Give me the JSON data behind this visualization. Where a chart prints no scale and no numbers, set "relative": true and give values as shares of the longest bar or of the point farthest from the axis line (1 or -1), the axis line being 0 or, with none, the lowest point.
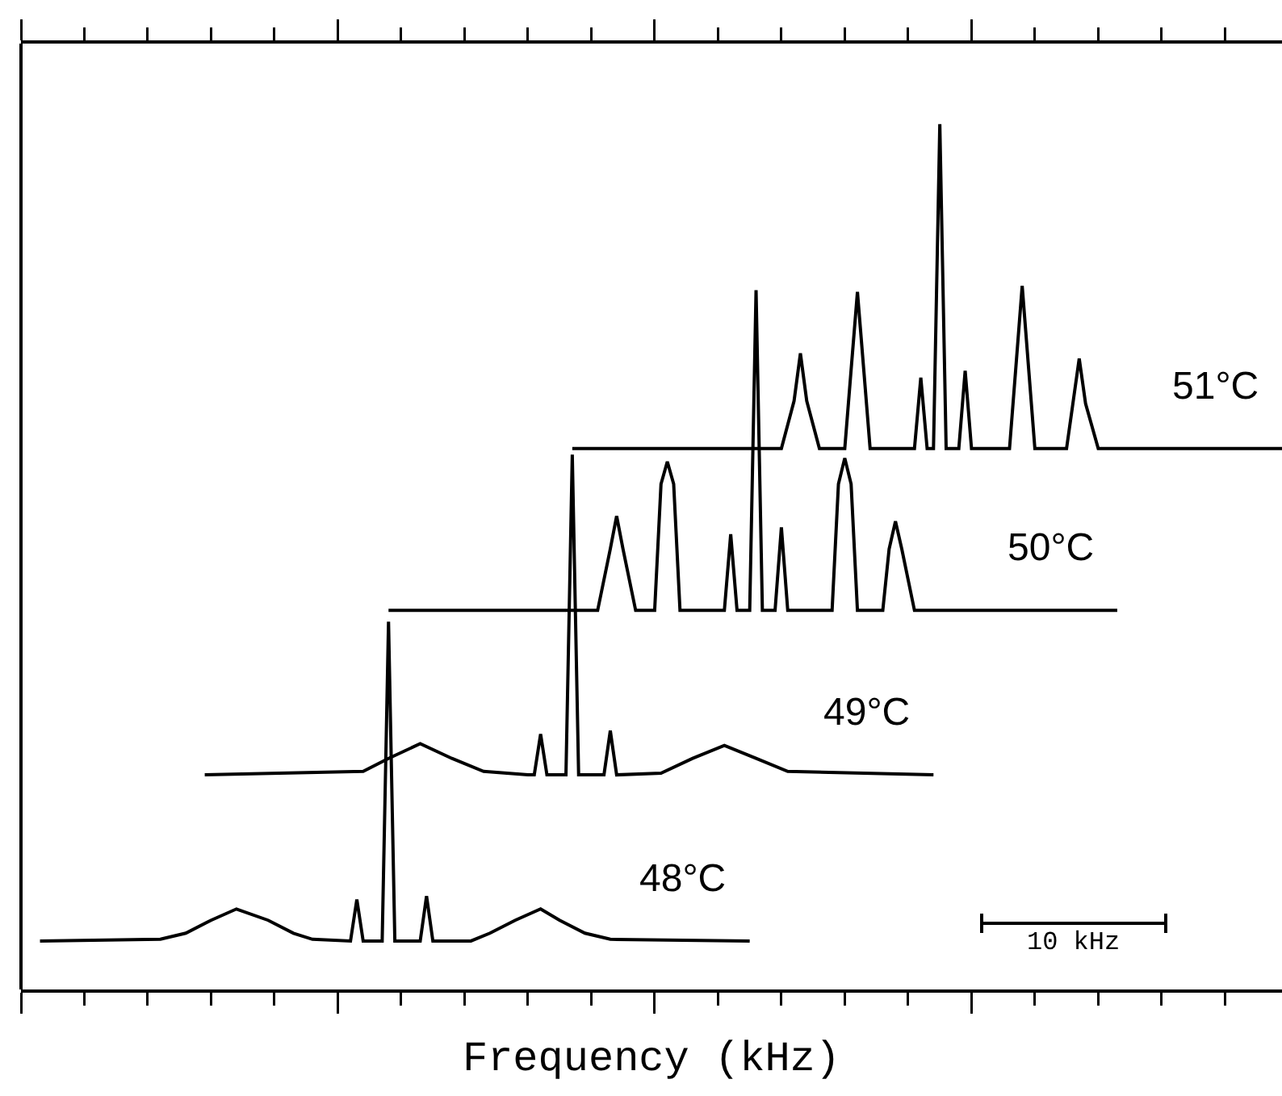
{
  "chart_data": {
    "type": "line",
    "relative": true,
    "xlabel": "Frequency (kHz)",
    "annotations": [
      "10 kHz"
    ],
    "categories": [
      null,
      null,
      null,
      null,
      null,
      null,
      null,
      null,
      null,
      null,
      null,
      null,
      null,
      null,
      null,
      null,
      null,
      null,
      null,
      null,
      null,
      null,
      null,
      null,
      null,
      null,
      null,
      null,
      null,
      null,
      null,
      null,
      null,
      null,
      null,
      null,
      null,
      null,
      null,
      null,
      null,
      null,
      null,
      null,
      null,
      null,
      null,
      null,
      null,
      null,
      null,
      null,
      null,
      null,
      null,
      null,
      null,
      null,
      null,
      null,
      null,
      null,
      null,
      null,
      null,
      null,
      null,
      null,
      null,
      null,
      null,
      null,
      null,
      null,
      null,
      null,
      null,
      null,
      null,
      null,
      null,
      null,
      null,
      null,
      null,
      null,
      null,
      null,
      null,
      null,
      null,
      null,
      null,
      null,
      null,
      null,
      null,
      null,
      null,
      null,
      null,
      null,
      null,
      null,
      null,
      null,
      null,
      null,
      null,
      null,
      null,
      null,
      null,
      null,
      null,
      null,
      null,
      null,
      null,
      null,
      null,
      null,
      null,
      null,
      null,
      null,
      null,
      null,
      null,
      null,
      null,
      null,
      null,
      null,
      null,
      null,
      null,
      null,
      null,
      null,
      null,
      null,
      null,
      null,
      null,
      null,
      null,
      null,
      null,
      null,
      null,
      null,
      null,
      null,
      null,
      null,
      null,
      null,
      null,
      null,
      null,
      null,
      null,
      null,
      null,
      null,
      null,
      null,
      null,
      null,
      null,
      null,
      null,
      null,
      null,
      null,
      null,
      null,
      null,
      null,
      null,
      null,
      null,
      null,
      null,
      null,
      null,
      null,
      null,
      null,
      null,
      null,
      null,
      null,
      null,
      null,
      null,
      null,
      null,
      null
    ],
    "series": [
      {
        "name": "48°C",
        "color": "#000000",
        "values": [
          null,
          null,
          null,
          0.056,
          null,
          null,
          null,
          null,
          null,
          null,
          null,
          null,
          null,
          null,
          null,
          null,
          null,
          null,
          null,
          null,
          null,
          null,
          0.058,
          null,
          null,
          null,
          0.065,
          null,
          null,
          null,
          0.08,
          null,
          null,
          null,
          0.093,
          null,
          null,
          null,
          null,
          0.08,
          null,
          null,
          null,
          0.065,
          null,
          null,
          0.058,
          null,
          null,
          null,
          null,
          null,
          0.056,
          0.104,
          0.056,
          null,
          null,
          0.056,
          0.425,
          0.056,
          null,
          null,
          null,
          0.056,
          0.108,
          0.056,
          null,
          null,
          null,
          null,
          null,
          0.056,
          null,
          null,
          0.065,
          null,
          null,
          null,
          0.08,
          null,
          null,
          null,
          0.093,
          null,
          null,
          0.08,
          null,
          null,
          null,
          0.065,
          null,
          null,
          null,
          0.058,
          null,
          null,
          null,
          null,
          null,
          null,
          null,
          null,
          null,
          null,
          null,
          null,
          null,
          null,
          null,
          null,
          null,
          null,
          null,
          null,
          null,
          0.056,
          null,
          null,
          null,
          null,
          null,
          null,
          null,
          null,
          null,
          null,
          null,
          null,
          null,
          null,
          null,
          null,
          null,
          null,
          null,
          null,
          null,
          null,
          null,
          null,
          null,
          null,
          null,
          null,
          null,
          null,
          null,
          null,
          null,
          null,
          null,
          null,
          null,
          null,
          null,
          null,
          null,
          null,
          null,
          null,
          null,
          null,
          null,
          null,
          null,
          null,
          null,
          null,
          null,
          null,
          null,
          null,
          null,
          null,
          null,
          null,
          null,
          null,
          null,
          null,
          null,
          null,
          null,
          null,
          null,
          null,
          null,
          null,
          null,
          null,
          null,
          null,
          null,
          null,
          null,
          null,
          null,
          null,
          null,
          null
        ]
      },
      {
        "name": "49°C",
        "color": "#000000",
        "values": [
          null,
          null,
          null,
          null,
          null,
          null,
          null,
          null,
          null,
          null,
          null,
          null,
          null,
          null,
          null,
          null,
          null,
          null,
          null,
          null,
          null,
          null,
          null,
          null,
          null,
          null,
          null,
          null,
          null,
          0.248,
          null,
          null,
          null,
          null,
          null,
          null,
          null,
          null,
          null,
          null,
          null,
          null,
          null,
          null,
          null,
          null,
          null,
          null,
          null,
          null,
          null,
          null,
          null,
          null,
          0.252,
          null,
          null,
          null,
          0.267,
          null,
          null,
          null,
          null,
          0.284,
          null,
          null,
          null,
          null,
          0.267,
          null,
          null,
          null,
          null,
          0.252,
          null,
          null,
          null,
          null,
          null,
          null,
          0.248,
          0.248,
          0.295,
          0.248,
          null,
          null,
          0.248,
          0.618,
          0.248,
          null,
          null,
          null,
          0.248,
          0.299,
          0.248,
          null,
          null,
          null,
          null,
          null,
          null,
          0.25,
          null,
          null,
          null,
          null,
          0.267,
          null,
          null,
          null,
          null,
          0.282,
          null,
          null,
          null,
          null,
          0.267,
          null,
          null,
          null,
          null,
          0.252,
          null,
          null,
          null,
          null,
          null,
          null,
          null,
          null,
          null,
          null,
          null,
          null,
          null,
          null,
          null,
          null,
          null,
          null,
          null,
          null,
          null,
          null,
          0.248,
          null,
          null,
          null,
          null,
          null,
          null,
          null,
          null,
          null,
          null,
          null,
          null,
          null,
          null,
          null,
          null,
          null,
          null,
          null,
          null,
          null,
          null,
          null,
          null,
          null,
          null,
          null,
          null,
          null,
          null,
          null,
          null,
          null,
          null,
          null,
          null,
          null,
          null,
          null,
          null,
          null,
          null,
          null,
          null,
          null,
          null,
          null,
          null,
          null,
          null,
          null,
          null,
          null,
          null,
          null
        ]
      },
      {
        "name": "50°C",
        "color": "#000000",
        "values": [
          null,
          null,
          null,
          null,
          null,
          null,
          null,
          null,
          null,
          null,
          null,
          null,
          null,
          null,
          null,
          null,
          null,
          null,
          null,
          null,
          null,
          null,
          null,
          null,
          null,
          null,
          null,
          null,
          null,
          null,
          null,
          null,
          null,
          null,
          null,
          null,
          null,
          null,
          null,
          null,
          null,
          null,
          null,
          null,
          null,
          null,
          null,
          null,
          null,
          null,
          null,
          null,
          null,
          null,
          null,
          null,
          null,
          null,
          0.438,
          null,
          null,
          null,
          null,
          null,
          null,
          null,
          null,
          null,
          null,
          null,
          null,
          null,
          null,
          null,
          null,
          null,
          null,
          null,
          null,
          null,
          null,
          null,
          null,
          null,
          null,
          null,
          null,
          null,
          null,
          null,
          null,
          0.438,
          null,
          0.509,
          0.547,
          0.509,
          null,
          0.438,
          null,
          null,
          0.438,
          0.584,
          0.61,
          0.584,
          0.438,
          null,
          null,
          null,
          null,
          null,
          null,
          0.438,
          0.526,
          0.438,
          null,
          0.438,
          0.808,
          0.438,
          null,
          0.438,
          0.534,
          0.438,
          null,
          null,
          null,
          null,
          null,
          null,
          0.438,
          0.584,
          0.614,
          0.584,
          0.438,
          null,
          null,
          null,
          0.438,
          0.509,
          0.541,
          0.509,
          null,
          0.438,
          null,
          null,
          null,
          null,
          null,
          null,
          null,
          null,
          null,
          null,
          null,
          null,
          null,
          null,
          null,
          null,
          null,
          null,
          null,
          null,
          null,
          null,
          null,
          null,
          null,
          null,
          null,
          null,
          null,
          null,
          null,
          0.438,
          null,
          null,
          null,
          null,
          null,
          null,
          null,
          null,
          null,
          null,
          null,
          null,
          null,
          null,
          null,
          null,
          null,
          null,
          null,
          null,
          null,
          null,
          null,
          null,
          null,
          null
        ]
      },
      {
        "name": "51°C",
        "color": "#000000",
        "values": [
          null,
          null,
          null,
          null,
          null,
          null,
          null,
          null,
          null,
          null,
          null,
          null,
          null,
          null,
          null,
          null,
          null,
          null,
          null,
          null,
          null,
          null,
          null,
          null,
          null,
          null,
          null,
          null,
          null,
          null,
          null,
          null,
          null,
          null,
          null,
          null,
          null,
          null,
          null,
          null,
          null,
          null,
          null,
          null,
          null,
          null,
          null,
          null,
          null,
          null,
          null,
          null,
          null,
          null,
          null,
          null,
          null,
          null,
          null,
          null,
          null,
          null,
          null,
          null,
          null,
          null,
          null,
          null,
          null,
          null,
          null,
          null,
          null,
          null,
          null,
          null,
          null,
          null,
          null,
          null,
          null,
          null,
          null,
          null,
          null,
          null,
          null,
          0.625,
          null,
          null,
          null,
          null,
          null,
          null,
          null,
          null,
          null,
          null,
          null,
          null,
          null,
          null,
          null,
          null,
          null,
          null,
          null,
          null,
          null,
          null,
          null,
          null,
          null,
          null,
          null,
          null,
          null,
          null,
          null,
          null,
          0.625,
          null,
          0.68,
          0.735,
          0.68,
          null,
          0.625,
          null,
          null,
          null,
          0.625,
          0.716,
          0.806,
          0.716,
          0.625,
          null,
          null,
          null,
          null,
          null,
          null,
          0.625,
          0.707,
          0.625,
          0.625,
          1.0,
          0.625,
          null,
          0.625,
          0.715,
          0.625,
          null,
          null,
          null,
          null,
          null,
          0.625,
          0.719,
          0.813,
          0.719,
          0.625,
          null,
          null,
          null,
          null,
          0.625,
          0.677,
          0.729,
          0.677,
          null,
          0.625,
          null,
          null,
          null,
          null,
          null,
          null,
          null,
          null,
          null,
          null,
          null,
          null,
          null,
          null,
          null,
          null,
          null,
          null,
          null,
          null,
          null,
          null,
          null,
          null,
          null,
          null,
          null,
          null,
          0.625
        ]
      }
    ]
  }
}
